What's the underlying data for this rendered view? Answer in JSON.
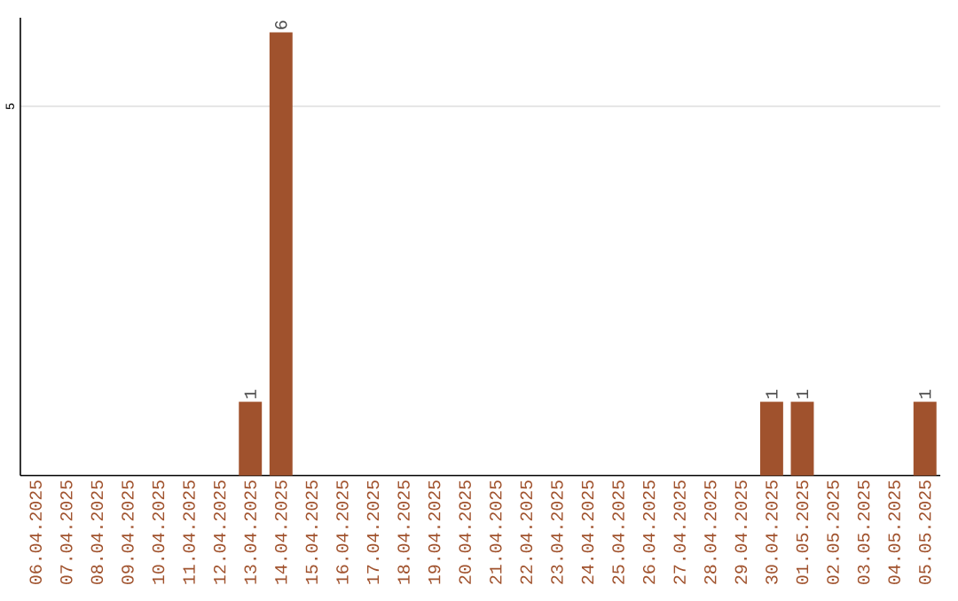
{
  "chart_data": {
    "type": "bar",
    "categories": [
      "06.04.2025",
      "07.04.2025",
      "08.04.2025",
      "09.04.2025",
      "10.04.2025",
      "11.04.2025",
      "12.04.2025",
      "13.04.2025",
      "14.04.2025",
      "15.04.2025",
      "16.04.2025",
      "17.04.2025",
      "18.04.2025",
      "19.04.2025",
      "20.04.2025",
      "21.04.2025",
      "22.04.2025",
      "23.04.2025",
      "24.04.2025",
      "25.04.2025",
      "26.04.2025",
      "27.04.2025",
      "28.04.2025",
      "29.04.2025",
      "30.04.2025",
      "01.05.2025",
      "02.05.2025",
      "03.05.2025",
      "04.05.2025",
      "05.05.2025"
    ],
    "values": [
      0,
      0,
      0,
      0,
      0,
      0,
      0,
      1,
      6,
      0,
      0,
      0,
      0,
      0,
      0,
      0,
      0,
      0,
      0,
      0,
      0,
      0,
      0,
      0,
      1,
      1,
      0,
      0,
      0,
      1
    ],
    "value_labels": [
      null,
      null,
      null,
      null,
      null,
      null,
      null,
      "1",
      "6",
      null,
      null,
      null,
      null,
      null,
      null,
      null,
      null,
      null,
      null,
      null,
      null,
      null,
      null,
      null,
      "1",
      "1",
      null,
      null,
      null,
      "1"
    ],
    "color": "#a0522d",
    "ylim": [
      0,
      6.2
    ],
    "yticks": [
      5
    ],
    "grid": "y"
  }
}
